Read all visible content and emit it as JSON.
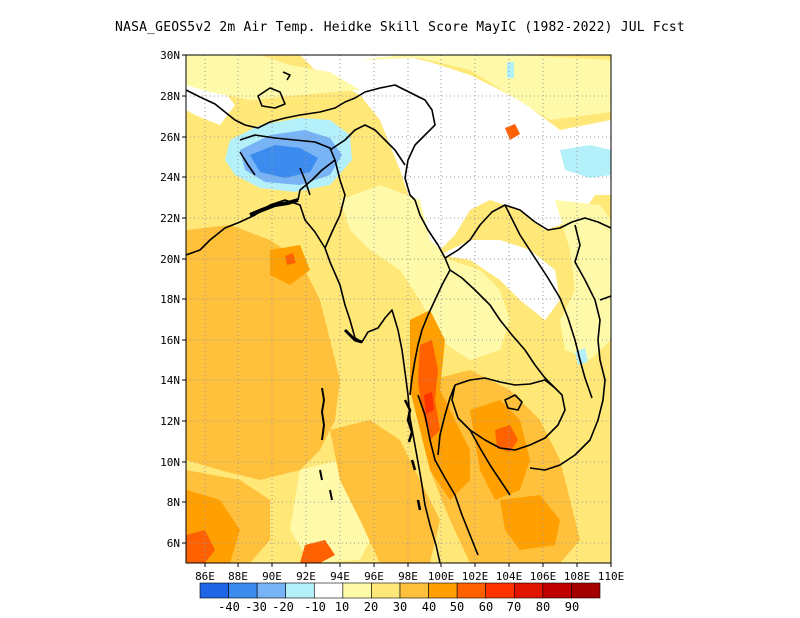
{
  "title": "NASA_GEOS5v2 2m Air Temp. Heidke Skill Score MayIC (1982-2022) JUL Fcst",
  "map": {
    "lon_range": [
      85,
      110
    ],
    "lat_range": [
      5,
      30
    ],
    "lon_ticks": [
      "86E",
      "88E",
      "90E",
      "92E",
      "94E",
      "96E",
      "98E",
      "100E",
      "102E",
      "104E",
      "106E",
      "108E",
      "110E"
    ],
    "lat_ticks": [
      "30N",
      "28N",
      "26N",
      "24N",
      "22N",
      "20N",
      "18N",
      "16N",
      "14N",
      "12N",
      "10N",
      "8N",
      "6N"
    ]
  },
  "colorbar": {
    "labels": [
      "-40",
      "-30",
      "-20",
      "-10",
      "10",
      "20",
      "30",
      "40",
      "50",
      "60",
      "70",
      "80",
      "90"
    ],
    "colors": [
      "#1f66e6",
      "#3c8cf0",
      "#78b4f5",
      "#b4f0fa",
      "#ffffff",
      "#fffaaa",
      "#ffe878",
      "#ffc03c",
      "#ffa000",
      "#ff6000",
      "#ff3200",
      "#e11400",
      "#c00000",
      "#a50000"
    ]
  },
  "colors": {
    "coast": "#000000",
    "grid": "#9a9a9a"
  }
}
